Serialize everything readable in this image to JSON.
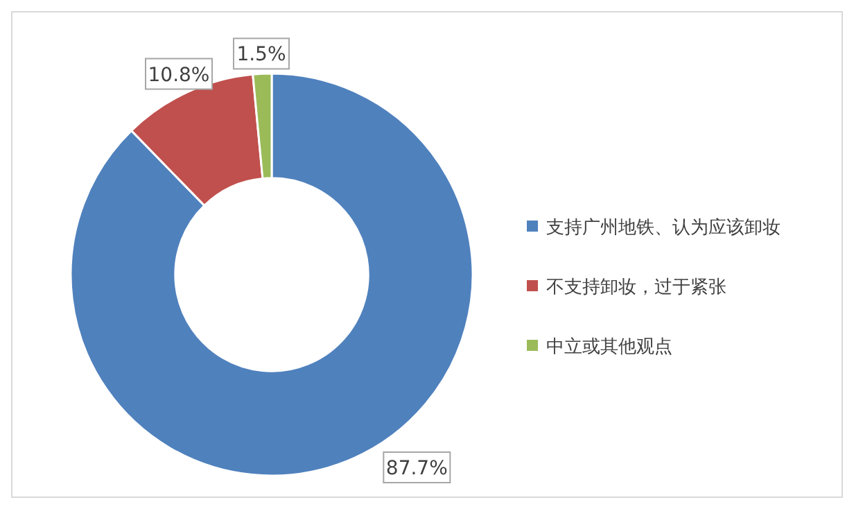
{
  "chart_data": {
    "type": "donut",
    "categories": [
      "支持广州地铁、认为应该卸妆",
      "不支持卸妆，过于紧张",
      "中立或其他观点"
    ],
    "values": [
      87.7,
      10.8,
      1.5
    ],
    "value_labels": [
      "87.7%",
      "10.8%",
      "1.5%"
    ],
    "colors": [
      "#4f81bd",
      "#c0504d",
      "#9bbb59"
    ],
    "legend": "right"
  }
}
